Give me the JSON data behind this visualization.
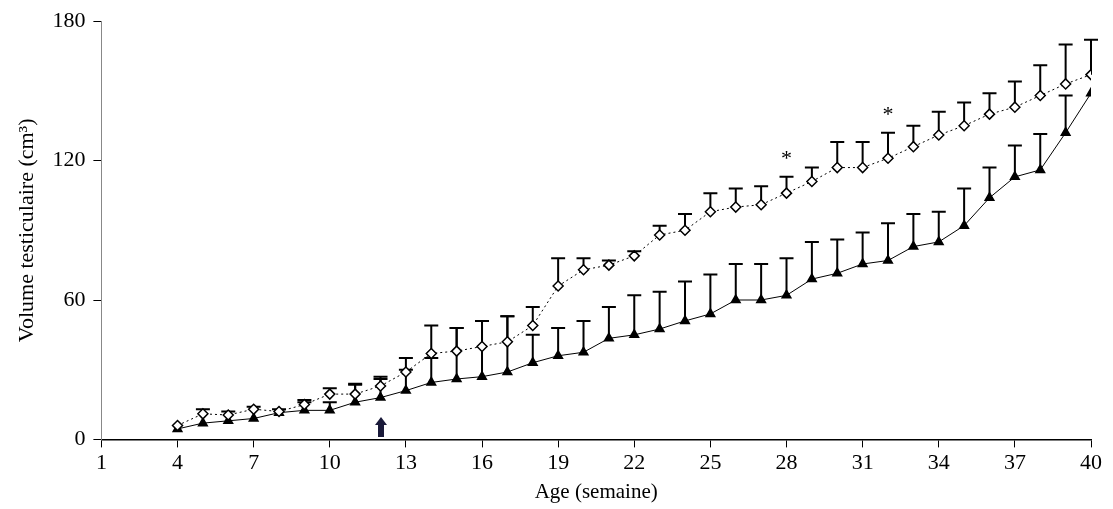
{
  "chart_data": {
    "type": "line",
    "xlabel": "Age (semaine)",
    "ylabel": "Volume testiculaire (cm³)",
    "xlim": [
      1,
      40
    ],
    "xticks": [
      1,
      4,
      7,
      10,
      13,
      16,
      19,
      22,
      25,
      28,
      31,
      34,
      37,
      40
    ],
    "ylim": [
      0,
      180
    ],
    "yticks": [
      0,
      60,
      120,
      180
    ],
    "grid": false,
    "legend": false,
    "x": [
      4,
      5,
      6,
      7,
      8,
      9,
      10,
      11,
      12,
      13,
      14,
      15,
      16,
      17,
      18,
      19,
      20,
      21,
      22,
      23,
      24,
      25,
      26,
      27,
      28,
      29,
      30,
      31,
      32,
      33,
      34,
      35,
      36,
      37,
      38,
      39,
      40
    ],
    "series": [
      {
        "color": "#000000",
        "marker": "diamond",
        "line_style": "dotted",
        "values": [
          6,
          11,
          10.5,
          13,
          12,
          15,
          19.5,
          19.5,
          23,
          29,
          37,
          38,
          40,
          42,
          49,
          66,
          73,
          75,
          79,
          88,
          90,
          98,
          100,
          101,
          106,
          111,
          117,
          117,
          121,
          126,
          131,
          135,
          140,
          143,
          148,
          153,
          157
        ],
        "errors": [
          null,
          [
            11,
            13
          ],
          [
            10.5,
            12
          ],
          [
            13,
            14
          ],
          [
            12,
            13
          ],
          [
            15,
            17
          ],
          [
            19.5,
            22
          ],
          [
            19.5,
            24
          ],
          [
            23,
            27
          ],
          [
            29,
            35
          ],
          [
            37,
            49
          ],
          [
            38,
            48
          ],
          [
            40,
            51
          ],
          [
            42,
            53
          ],
          [
            49,
            57
          ],
          [
            66,
            78
          ],
          [
            73,
            78
          ],
          [
            75,
            77
          ],
          [
            79,
            81
          ],
          [
            88,
            92
          ],
          [
            90,
            97
          ],
          [
            98,
            106
          ],
          [
            100,
            108
          ],
          [
            101,
            109
          ],
          [
            106,
            113
          ],
          [
            111,
            117
          ],
          [
            117,
            128
          ],
          [
            117,
            128
          ],
          [
            121,
            132
          ],
          [
            126,
            135
          ],
          [
            131,
            141
          ],
          [
            135,
            145
          ],
          [
            140,
            149
          ],
          [
            143,
            154
          ],
          [
            148,
            161
          ],
          [
            153,
            170
          ],
          [
            157,
            172
          ]
        ]
      },
      {
        "color": "#000000",
        "marker": "triangle",
        "line_style": "solid",
        "values": [
          4.5,
          7,
          8,
          9,
          11.5,
          12.5,
          12.5,
          16,
          18,
          21,
          24.5,
          26,
          27,
          29,
          33,
          36,
          37.5,
          43.5,
          45,
          47.5,
          51,
          54,
          60,
          60,
          62,
          69,
          71.5,
          75.5,
          77,
          83,
          85,
          92,
          104,
          113,
          116,
          132,
          149
        ],
        "errors": [
          null,
          null,
          null,
          null,
          null,
          [
            12.5,
            16
          ],
          [
            12.5,
            16
          ],
          [
            16,
            23.5
          ],
          [
            18,
            26
          ],
          [
            21,
            30
          ],
          [
            24.5,
            35
          ],
          [
            26,
            48
          ],
          [
            27,
            51
          ],
          [
            29,
            53
          ],
          [
            33,
            45
          ],
          [
            36,
            48
          ],
          [
            37.5,
            51
          ],
          [
            43.5,
            57
          ],
          [
            45,
            62
          ],
          [
            47.5,
            63.5
          ],
          [
            51,
            68
          ],
          [
            54,
            71
          ],
          [
            60,
            75.5
          ],
          [
            60,
            75.5
          ],
          [
            62,
            78
          ],
          [
            69,
            85
          ],
          [
            71.5,
            86
          ],
          [
            75.5,
            89
          ],
          [
            77,
            93
          ],
          [
            83,
            97
          ],
          [
            85,
            98
          ],
          [
            92,
            108
          ],
          [
            104,
            117
          ],
          [
            113,
            126.5
          ],
          [
            116,
            131.5
          ],
          [
            132,
            148
          ],
          null
        ]
      }
    ],
    "annotations": [
      {
        "text": "*",
        "x": 28,
        "y": 113
      },
      {
        "text": "*",
        "x": 32,
        "y": 132
      }
    ]
  }
}
